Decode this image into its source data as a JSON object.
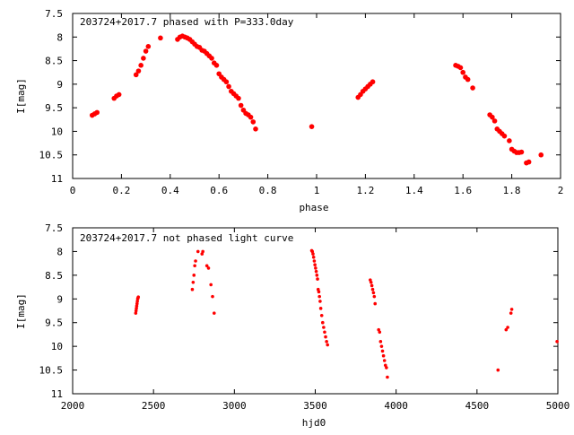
{
  "colors": {
    "points": "#ff0000",
    "axis": "#000000",
    "background": "#ffffff"
  },
  "chart_data": [
    {
      "type": "scatter",
      "title": "203724+2017.7 phased with P=333.0day",
      "xlabel": "phase",
      "ylabel": "I[mag]",
      "xlim": [
        0,
        2
      ],
      "ylim": [
        11,
        7.5
      ],
      "y_inverted": true,
      "grid": false,
      "xticks": [
        "0",
        "0.2",
        "0.4",
        "0.6",
        "0.8",
        "1",
        "1.2",
        "1.4",
        "1.6",
        "1.8",
        "2"
      ],
      "xtick_values": [
        0,
        0.2,
        0.4,
        0.6,
        0.8,
        1.0,
        1.2,
        1.4,
        1.6,
        1.8,
        2.0
      ],
      "yticks": [
        "7.5",
        "8",
        "8.5",
        "9",
        "9.5",
        "10",
        "10.5",
        "11"
      ],
      "ytick_values": [
        7.5,
        8,
        8.5,
        9,
        9.5,
        10,
        10.5,
        11
      ],
      "series": [
        {
          "x": [
            0.08,
            0.09,
            0.1,
            0.17,
            0.18,
            0.19,
            0.26,
            0.27,
            0.28,
            0.29,
            0.3,
            0.31,
            0.36,
            0.43,
            0.44,
            0.45,
            0.46,
            0.47,
            0.48,
            0.49,
            0.5,
            0.51,
            0.52,
            0.53,
            0.54,
            0.55,
            0.56,
            0.57,
            0.58,
            0.59,
            0.6,
            0.61,
            0.62,
            0.63,
            0.64,
            0.65,
            0.66,
            0.67,
            0.68,
            0.69,
            0.7,
            0.71,
            0.72,
            0.73,
            0.74,
            0.75,
            0.98,
            1.17,
            1.18,
            1.19,
            1.2,
            1.21,
            1.22,
            1.23,
            1.57,
            1.58,
            1.59,
            1.6,
            1.61,
            1.62,
            1.64,
            1.71,
            1.72,
            1.73,
            1.74,
            1.75,
            1.76,
            1.77,
            1.79,
            1.8,
            1.81,
            1.82,
            1.83,
            1.84,
            1.86,
            1.87,
            1.92
          ],
          "y": [
            9.66,
            9.63,
            9.6,
            9.3,
            9.25,
            9.22,
            8.8,
            8.72,
            8.6,
            8.45,
            8.3,
            8.2,
            8.02,
            8.05,
            8.0,
            7.98,
            8.0,
            8.02,
            8.05,
            8.1,
            8.15,
            8.2,
            8.22,
            8.28,
            8.3,
            8.35,
            8.4,
            8.45,
            8.55,
            8.6,
            8.78,
            8.85,
            8.9,
            8.95,
            9.05,
            9.15,
            9.2,
            9.25,
            9.3,
            9.45,
            9.55,
            9.62,
            9.65,
            9.7,
            9.8,
            9.95,
            9.9,
            9.28,
            9.22,
            9.15,
            9.1,
            9.05,
            9.0,
            8.95,
            8.6,
            8.62,
            8.65,
            8.75,
            8.85,
            8.9,
            9.08,
            9.65,
            9.7,
            9.78,
            9.95,
            10.0,
            10.05,
            10.1,
            10.2,
            10.38,
            10.42,
            10.45,
            10.45,
            10.44,
            10.67,
            10.65,
            10.5
          ]
        }
      ]
    },
    {
      "type": "scatter",
      "title": "203724+2017.7 not phased light curve",
      "xlabel": "hjd0",
      "ylabel": "I[mag]",
      "xlim": [
        2000,
        5000
      ],
      "ylim": [
        11,
        7.5
      ],
      "y_inverted": true,
      "grid": false,
      "xticks": [
        "2000",
        "2500",
        "3000",
        "3500",
        "4000",
        "4500",
        "5000"
      ],
      "xtick_values": [
        2000,
        2500,
        3000,
        3500,
        4000,
        4500,
        5000
      ],
      "yticks": [
        "7.5",
        "8",
        "8.5",
        "9",
        "9.5",
        "10",
        "10.5",
        "11"
      ],
      "ytick_values": [
        7.5,
        8,
        8.5,
        9,
        9.5,
        10,
        10.5,
        11
      ],
      "series": [
        {
          "x": [
            2390,
            2392,
            2394,
            2396,
            2398,
            2400,
            2402,
            2404,
            2406,
            2740,
            2745,
            2750,
            2755,
            2760,
            2775,
            2800,
            2805,
            2830,
            2840,
            2855,
            2865,
            2875,
            3478,
            3482,
            3486,
            3490,
            3494,
            3498,
            3502,
            3506,
            3510,
            3514,
            3518,
            3522,
            3526,
            3530,
            3534,
            3540,
            3546,
            3552,
            3558,
            3564,
            3570,
            3576,
            3840,
            3845,
            3850,
            3855,
            3860,
            3865,
            3870,
            3892,
            3898,
            3904,
            3910,
            3916,
            3922,
            3928,
            3934,
            3940,
            3946,
            4630,
            4680,
            4690,
            4710,
            4715,
            4995
          ],
          "y": [
            9.3,
            9.25,
            9.2,
            9.15,
            9.1,
            9.05,
            9.0,
            8.98,
            8.96,
            8.8,
            8.65,
            8.5,
            8.3,
            8.2,
            8.0,
            8.05,
            8.0,
            8.3,
            8.35,
            8.7,
            8.95,
            9.3,
            7.98,
            8.0,
            8.05,
            8.12,
            8.2,
            8.28,
            8.35,
            8.42,
            8.5,
            8.58,
            8.8,
            8.85,
            8.95,
            9.05,
            9.2,
            9.35,
            9.5,
            9.6,
            9.7,
            9.8,
            9.9,
            9.97,
            8.6,
            8.65,
            8.72,
            8.8,
            8.87,
            8.95,
            9.1,
            9.65,
            9.7,
            9.9,
            10.0,
            10.1,
            10.2,
            10.3,
            10.4,
            10.45,
            10.65,
            10.5,
            9.65,
            9.6,
            9.3,
            9.22,
            9.9
          ]
        }
      ]
    }
  ]
}
